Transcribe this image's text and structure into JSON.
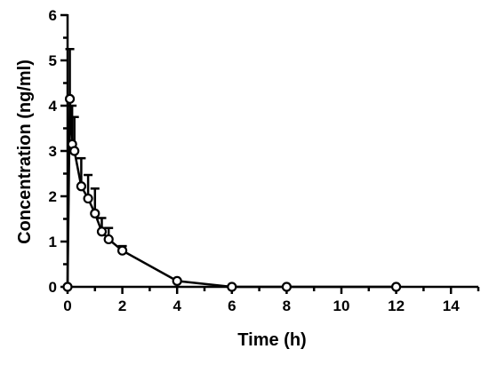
{
  "chart_data": {
    "type": "line",
    "xlabel": "Time (h)",
    "ylabel": "Concentration (ng/ml)",
    "xlim": [
      0,
      15
    ],
    "ylim": [
      0,
      6
    ],
    "xticks": [
      0,
      2,
      4,
      6,
      8,
      10,
      12,
      14
    ],
    "yticks": [
      0,
      1,
      2,
      3,
      4,
      5,
      6
    ],
    "grid": false,
    "series": [
      {
        "x": [
          0,
          0.083,
          0.167,
          0.25,
          0.5,
          0.75,
          1.0,
          1.25,
          1.5,
          2.0,
          4.0,
          6.0,
          8.0,
          12.0
        ],
        "y": [
          0,
          4.15,
          3.15,
          3.0,
          2.22,
          1.95,
          1.62,
          1.22,
          1.05,
          0.8,
          0.13,
          0.0,
          0.0,
          0.0
        ],
        "error_upper": [
          0,
          1.1,
          0.85,
          0.75,
          0.62,
          0.52,
          0.55,
          0.3,
          0.25,
          0.1,
          0,
          0,
          0,
          0
        ]
      }
    ]
  }
}
